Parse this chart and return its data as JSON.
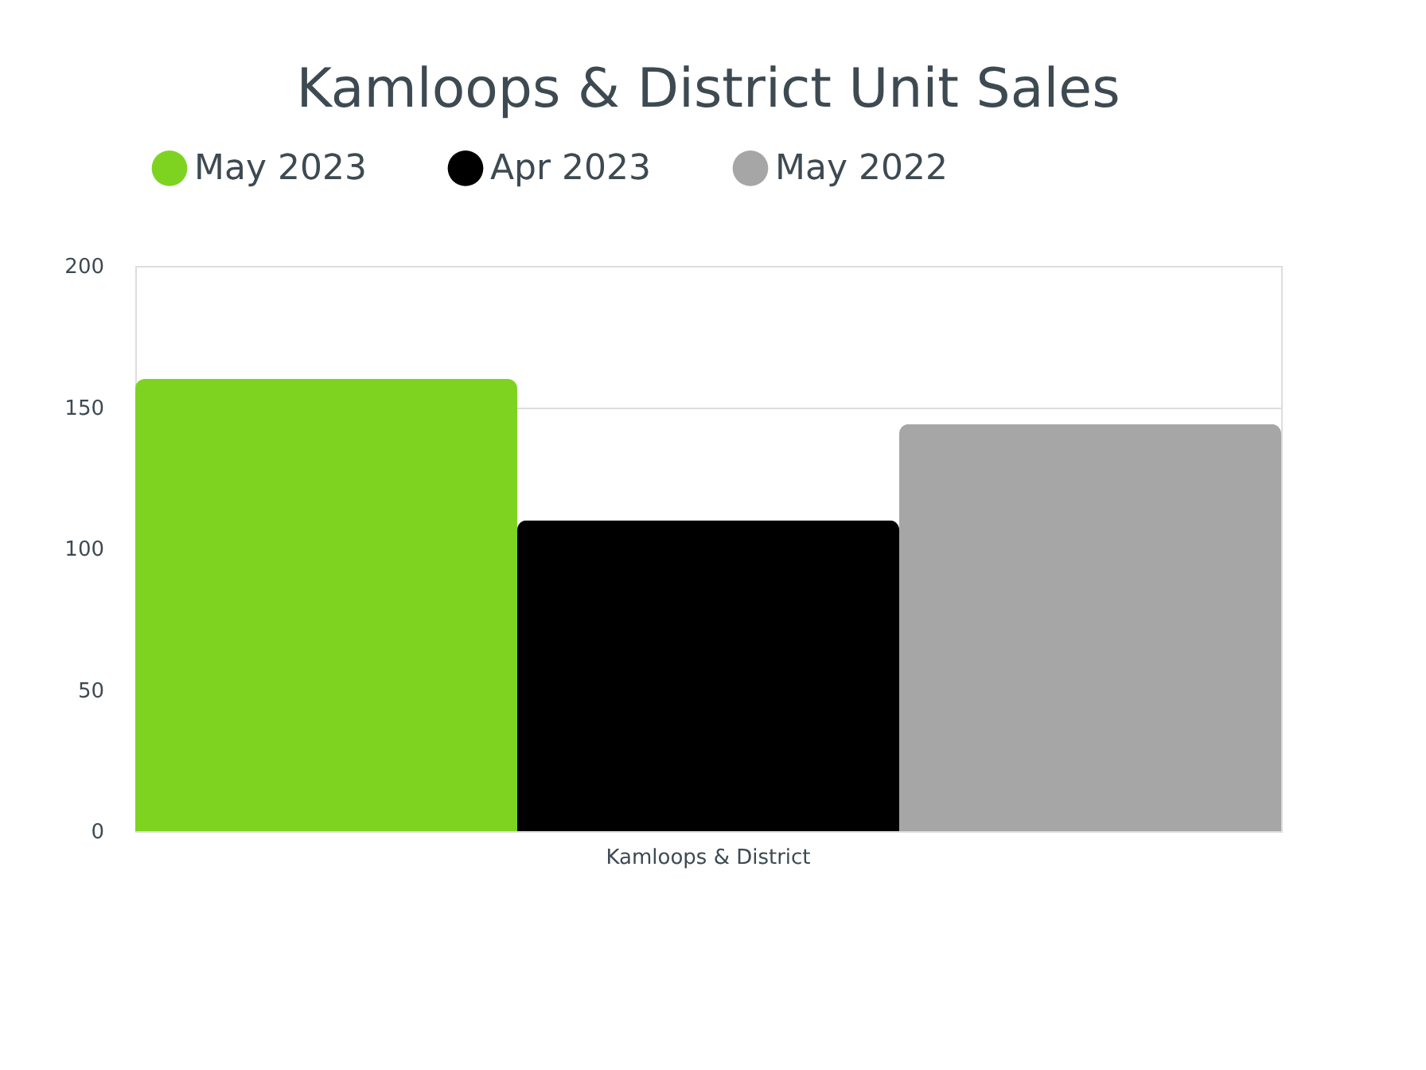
{
  "chart_data": {
    "type": "bar",
    "title": "Kamloops & District Unit Sales",
    "categories": [
      "Kamloops & District"
    ],
    "series": [
      {
        "name": "May 2023",
        "color": "#7ed321",
        "values": [
          160
        ]
      },
      {
        "name": "Apr 2023",
        "color": "#000000",
        "values": [
          110
        ]
      },
      {
        "name": "May 2022",
        "color": "#a6a6a6",
        "values": [
          144
        ]
      }
    ],
    "ylim": [
      0,
      200
    ],
    "yticks": [
      0,
      50,
      100,
      150,
      200
    ],
    "grid": "y",
    "legend": "top"
  }
}
